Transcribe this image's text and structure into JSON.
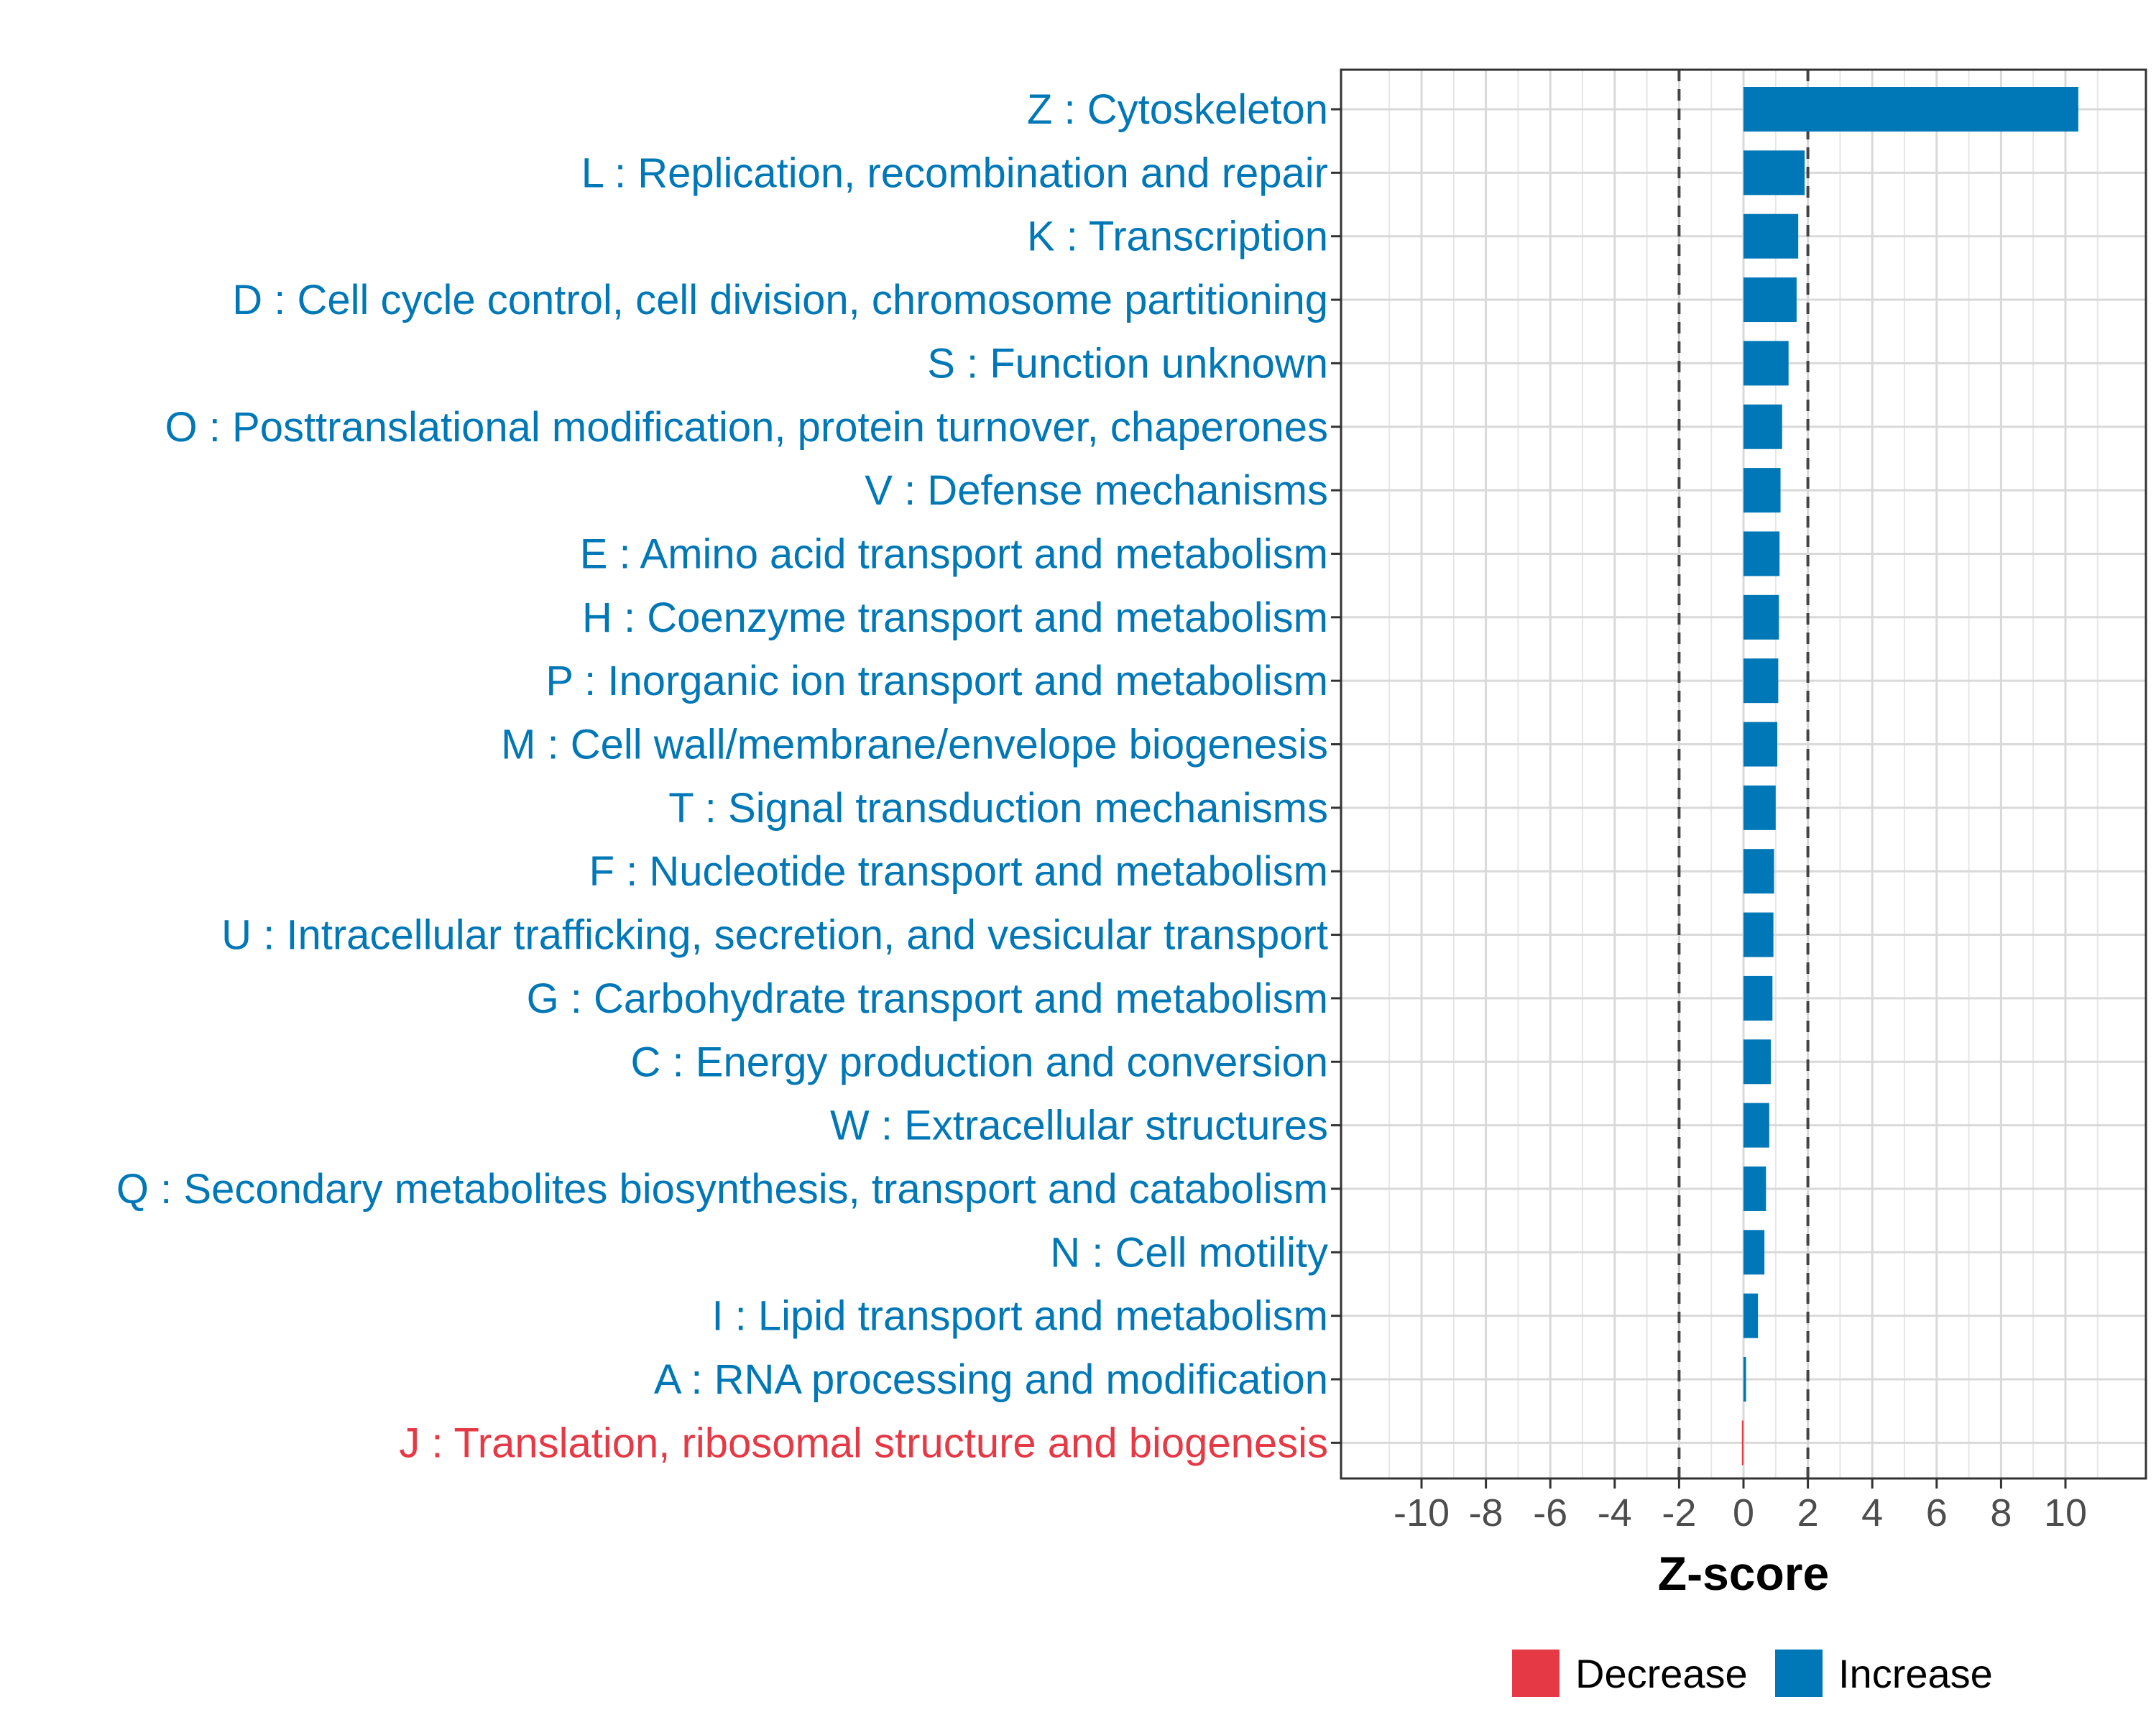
{
  "chart_data": {
    "type": "bar",
    "orientation": "horizontal",
    "xlabel": "Z-score",
    "xlim": [
      -12.5,
      12.5
    ],
    "xticks": [
      -10,
      -8,
      -6,
      -4,
      -2,
      0,
      2,
      4,
      6,
      8,
      10
    ],
    "xtick_labels": [
      "-10",
      "-8",
      "-6",
      "-4",
      "-2",
      "0",
      "2",
      "4",
      "6",
      "8",
      "10"
    ],
    "threshold_lines": [
      -2,
      2
    ],
    "categories": [
      "Z : Cytoskeleton",
      "L : Replication, recombination and repair",
      "K : Transcription",
      "D : Cell cycle control, cell division, chromosome partitioning",
      "S : Function unknown",
      "O : Posttranslational modification, protein turnover, chaperones",
      "V : Defense mechanisms",
      "E : Amino acid transport and metabolism",
      "H : Coenzyme transport and metabolism",
      "P : Inorganic ion transport and metabolism",
      "M : Cell wall/membrane/envelope biogenesis",
      "T : Signal transduction mechanisms",
      "F : Nucleotide transport and metabolism",
      "U : Intracellular trafficking, secretion, and vesicular transport",
      "G : Carbohydrate transport and metabolism",
      "C : Energy production and conversion",
      "W : Extracellular structures",
      "Q : Secondary metabolites biosynthesis, transport and catabolism",
      "N : Cell motility",
      "I : Lipid transport and metabolism",
      "A : RNA processing and modification",
      "J : Translation, ribosomal structure and biogenesis"
    ],
    "values": [
      10.4,
      1.9,
      1.7,
      1.65,
      1.4,
      1.2,
      1.15,
      1.12,
      1.1,
      1.08,
      1.05,
      1.0,
      0.95,
      0.93,
      0.9,
      0.85,
      0.8,
      0.7,
      0.65,
      0.45,
      0.08,
      -0.05
    ],
    "directions": [
      "Increase",
      "Increase",
      "Increase",
      "Increase",
      "Increase",
      "Increase",
      "Increase",
      "Increase",
      "Increase",
      "Increase",
      "Increase",
      "Increase",
      "Increase",
      "Increase",
      "Increase",
      "Increase",
      "Increase",
      "Increase",
      "Increase",
      "Increase",
      "Increase",
      "Decrease"
    ],
    "legend": {
      "position": "bottom",
      "entries": [
        {
          "label": "Decrease",
          "color": "#e63946"
        },
        {
          "label": "Increase",
          "color": "#0077b6"
        }
      ]
    },
    "colors": {
      "Increase": "#0077b6",
      "Decrease": "#e63946"
    }
  }
}
